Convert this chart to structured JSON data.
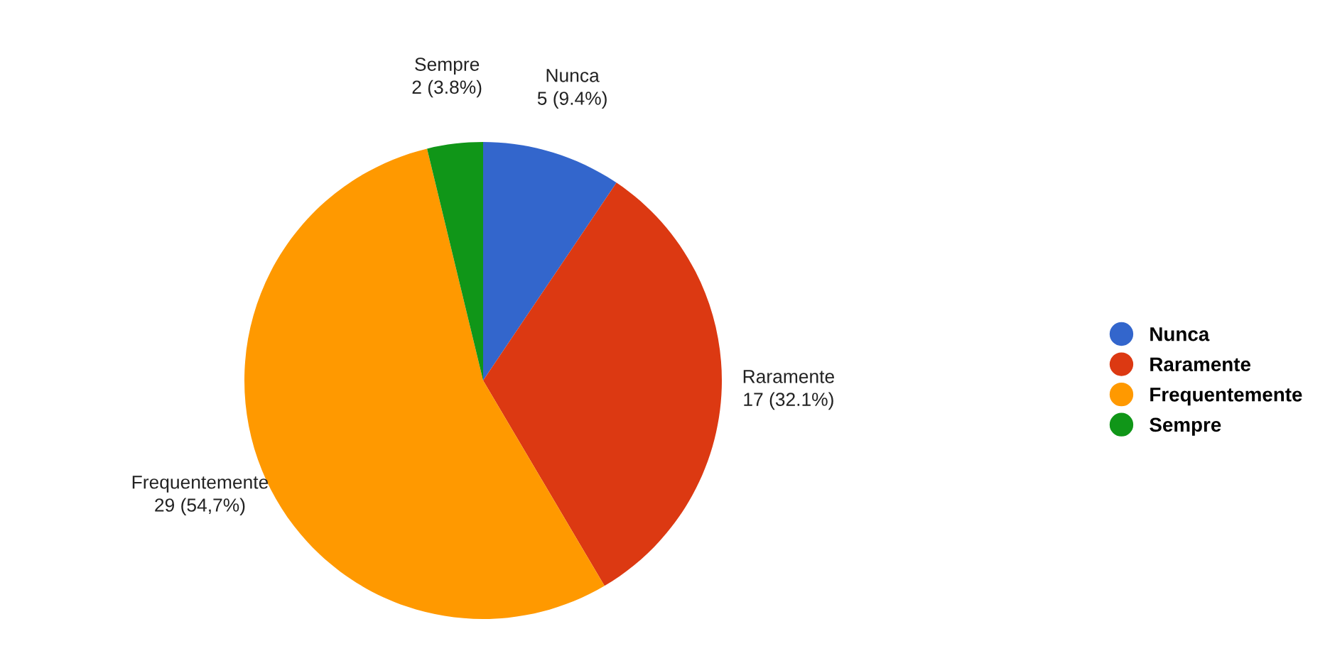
{
  "chart_data": {
    "type": "pie",
    "categories": [
      "Nunca",
      "Raramente",
      "Frequentemente",
      "Sempre"
    ],
    "values": [
      5,
      17,
      29,
      2
    ],
    "value_labels": [
      "5 (9.4%)",
      "17 (32.1%)",
      "29 (54,7%)",
      "2 (3.8%)"
    ],
    "colors": [
      "#3366cc",
      "#dc3912",
      "#ff9900",
      "#109618"
    ],
    "legend": "right"
  }
}
